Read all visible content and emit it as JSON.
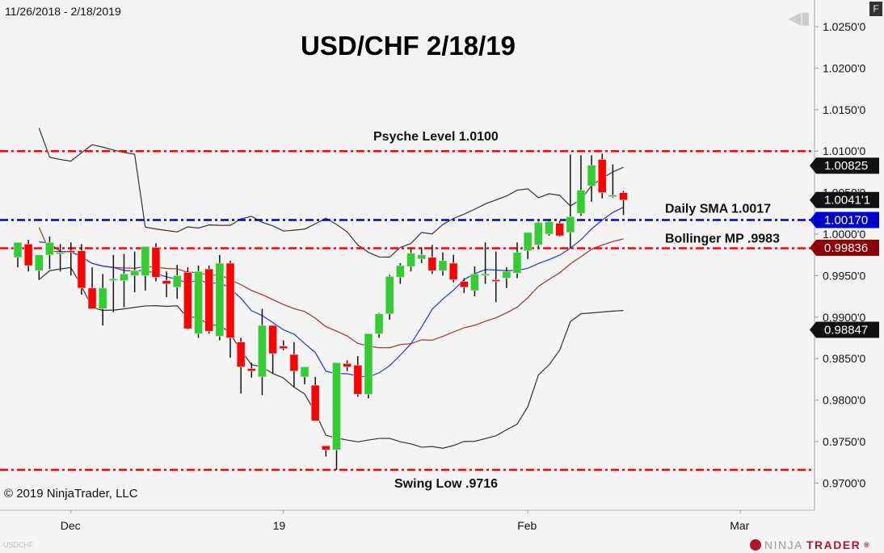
{
  "header": {
    "date_range": "11/26/2018 - 2/18/2019",
    "title": "USD/CHF 2/18/19",
    "f_button": "F",
    "nav_icon": "jump-to-start-icon"
  },
  "footer": {
    "copyright": "© 2019 NinjaTrader, LLC",
    "symbol": "USDCHF",
    "logo_ninja": "NINJA",
    "logo_trader": "TRADER",
    "logo_reg": "®"
  },
  "colors": {
    "background": "#f4f4f4",
    "up_candle": "#33cc33",
    "down_candle": "#ff0000",
    "level_red": "#ff0000",
    "level_blue": "#0000cc",
    "sma_blue": "#2233dd",
    "bb_mid": "#a03030",
    "bb_band": "#333333",
    "tag_black": "#111111",
    "tag_blue": "#0000cc",
    "tag_darkred": "#8b0000"
  },
  "chart_data": {
    "type": "candlestick",
    "title": "USD/CHF 2/18/19",
    "subtitle": "11/26/2018 - 2/18/2019",
    "xlabel": "",
    "ylabel": "",
    "ylim": [
      0.9675,
      1.0265
    ],
    "y_ticks": [
      "1.0250'0",
      "1.0200'0",
      "1.0150'0",
      "1.0100'0",
      "1.0050'0",
      "1.0000'0",
      "0.9950'0",
      "0.9900'0",
      "0.9850'0",
      "0.9800'0",
      "0.9750'0",
      "0.9700'0"
    ],
    "x_ticks": [
      {
        "label": "Dec",
        "bar": 5
      },
      {
        "label": "19",
        "bar": 25
      },
      {
        "label": "Feb",
        "bar": 48
      },
      {
        "label": "Mar",
        "bar": 68
      }
    ],
    "grid": false,
    "candles": [
      {
        "o": 0.9972,
        "h": 0.999,
        "l": 0.996,
        "c": 0.999
      },
      {
        "o": 0.9988,
        "h": 0.9993,
        "l": 0.9955,
        "c": 0.9962
      },
      {
        "o": 0.9956,
        "h": 0.9974,
        "l": 0.9945,
        "c": 0.9975
      },
      {
        "o": 0.9975,
        "h": 0.9997,
        "l": 0.9958,
        "c": 0.999
      },
      {
        "o": 0.9978,
        "h": 0.9988,
        "l": 0.9955,
        "c": 0.9978
      },
      {
        "o": 0.998,
        "h": 0.999,
        "l": 0.995,
        "c": 0.9978
      },
      {
        "o": 0.998,
        "h": 0.9988,
        "l": 0.9927,
        "c": 0.9935
      },
      {
        "o": 0.9935,
        "h": 0.996,
        "l": 0.9915,
        "c": 0.991
      },
      {
        "o": 0.991,
        "h": 0.9952,
        "l": 0.989,
        "c": 0.9935
      },
      {
        "o": 0.9946,
        "h": 0.9975,
        "l": 0.9906,
        "c": 0.9946
      },
      {
        "o": 0.9944,
        "h": 0.9976,
        "l": 0.9912,
        "c": 0.9952
      },
      {
        "o": 0.995,
        "h": 0.9979,
        "l": 0.993,
        "c": 0.9956
      },
      {
        "o": 0.995,
        "h": 0.9975,
        "l": 0.9932,
        "c": 0.9985
      },
      {
        "o": 0.9984,
        "h": 0.9989,
        "l": 0.9943,
        "c": 0.9948
      },
      {
        "o": 0.9944,
        "h": 0.9955,
        "l": 0.9924,
        "c": 0.994
      },
      {
        "o": 0.9936,
        "h": 0.9963,
        "l": 0.9922,
        "c": 0.995
      },
      {
        "o": 0.9954,
        "h": 0.996,
        "l": 0.9885,
        "c": 0.9886
      },
      {
        "o": 0.988,
        "h": 0.9962,
        "l": 0.9875,
        "c": 0.9955
      },
      {
        "o": 0.9958,
        "h": 0.9962,
        "l": 0.988,
        "c": 0.9883
      },
      {
        "o": 0.9877,
        "h": 0.9975,
        "l": 0.9872,
        "c": 0.9965
      },
      {
        "o": 0.9965,
        "h": 0.9968,
        "l": 0.9851,
        "c": 0.9875
      },
      {
        "o": 0.987,
        "h": 0.9875,
        "l": 0.9808,
        "c": 0.984
      },
      {
        "o": 0.9838,
        "h": 0.9845,
        "l": 0.9827,
        "c": 0.9835
      },
      {
        "o": 0.9828,
        "h": 0.991,
        "l": 0.9806,
        "c": 0.989
      },
      {
        "o": 0.989,
        "h": 0.989,
        "l": 0.9832,
        "c": 0.9856
      },
      {
        "o": 0.9865,
        "h": 0.9872,
        "l": 0.986,
        "c": 0.9862
      },
      {
        "o": 0.9855,
        "h": 0.987,
        "l": 0.9815,
        "c": 0.9835
      },
      {
        "o": 0.9828,
        "h": 0.984,
        "l": 0.9819,
        "c": 0.984
      },
      {
        "o": 0.9818,
        "h": 0.9828,
        "l": 0.9775,
        "c": 0.9775
      },
      {
        "o": 0.9745,
        "h": 0.9745,
        "l": 0.9732,
        "c": 0.974
      },
      {
        "o": 0.974,
        "h": 0.9845,
        "l": 0.9716,
        "c": 0.9845
      },
      {
        "o": 0.9844,
        "h": 0.9848,
        "l": 0.9835,
        "c": 0.984
      },
      {
        "o": 0.9842,
        "h": 0.9853,
        "l": 0.9804,
        "c": 0.9807
      },
      {
        "o": 0.9807,
        "h": 0.988,
        "l": 0.9802,
        "c": 0.988
      },
      {
        "o": 0.988,
        "h": 0.9905,
        "l": 0.9875,
        "c": 0.9904
      },
      {
        "o": 0.9904,
        "h": 0.9951,
        "l": 0.9897,
        "c": 0.9949
      },
      {
        "o": 0.9948,
        "h": 0.9965,
        "l": 0.994,
        "c": 0.9962
      },
      {
        "o": 0.9961,
        "h": 0.9983,
        "l": 0.9955,
        "c": 0.9977
      },
      {
        "o": 0.997,
        "h": 0.9984,
        "l": 0.9965,
        "c": 0.9975
      },
      {
        "o": 0.9972,
        "h": 0.9987,
        "l": 0.9952,
        "c": 0.9956
      },
      {
        "o": 0.9956,
        "h": 0.9978,
        "l": 0.995,
        "c": 0.9968
      },
      {
        "o": 0.9965,
        "h": 0.9975,
        "l": 0.9942,
        "c": 0.9945
      },
      {
        "o": 0.9943,
        "h": 0.9947,
        "l": 0.9929,
        "c": 0.9936
      },
      {
        "o": 0.9932,
        "h": 0.9961,
        "l": 0.9925,
        "c": 0.9952
      },
      {
        "o": 0.9952,
        "h": 0.999,
        "l": 0.994,
        "c": 0.9952
      },
      {
        "o": 0.9945,
        "h": 0.9979,
        "l": 0.9918,
        "c": 0.9944
      },
      {
        "o": 0.9947,
        "h": 0.996,
        "l": 0.9935,
        "c": 0.9955
      },
      {
        "o": 0.9953,
        "h": 0.999,
        "l": 0.9947,
        "c": 0.9978
      },
      {
        "o": 0.998,
        "h": 0.9997,
        "l": 0.997,
        "c": 1.0002
      },
      {
        "o": 0.9987,
        "h": 1.0015,
        "l": 0.9984,
        "c": 1.0014
      },
      {
        "o": 1.0,
        "h": 1.0017,
        "l": 0.9998,
        "c": 1.0015
      },
      {
        "o": 1.0013,
        "h": 1.0016,
        "l": 0.9997,
        "c": 0.9998
      },
      {
        "o": 1.0002,
        "h": 1.0096,
        "l": 0.9983,
        "c": 1.0021
      },
      {
        "o": 1.0025,
        "h": 1.0095,
        "l": 1.0022,
        "c": 1.0053
      },
      {
        "o": 1.0058,
        "h": 1.0095,
        "l": 1.0039,
        "c": 1.0083
      },
      {
        "o": 1.009,
        "h": 1.0097,
        "l": 1.0043,
        "c": 1.005
      },
      {
        "o": 1.0046,
        "h": 1.0084,
        "l": 1.0044,
        "c": 1.0047
      },
      {
        "o": 1.005,
        "h": 1.0052,
        "l": 1.0023,
        "c": 1.0041
      }
    ],
    "series": [
      {
        "name": "Bollinger Upper",
        "color": "#333333"
      },
      {
        "name": "Bollinger Middle (MP)",
        "color": "#a03030"
      },
      {
        "name": "Bollinger Lower",
        "color": "#333333"
      },
      {
        "name": "Daily SMA",
        "color": "#2233dd"
      }
    ],
    "horizontal_levels": [
      {
        "label": "Psyche Level 1.0100",
        "value": 1.01,
        "color": "#ff0000"
      },
      {
        "label": "Daily SMA  1.0017",
        "value": 1.0017,
        "color": "#0000cc"
      },
      {
        "label": "Bollinger MP .9983",
        "value": 0.9983,
        "color": "#ff0000"
      },
      {
        "label": "Swing Low .9716",
        "value": 0.9716,
        "color": "#ff0000"
      }
    ],
    "price_tags": [
      {
        "label": "1.00825",
        "value": 1.00825,
        "color": "#111111"
      },
      {
        "label": "1.0041'1",
        "value": 1.00411,
        "color": "#111111"
      },
      {
        "label": "1.00170",
        "value": 1.0017,
        "color": "#0000cc"
      },
      {
        "label": "0.99836",
        "value": 0.99836,
        "color": "#8b0000"
      },
      {
        "label": "0.98847",
        "value": 0.98847,
        "color": "#111111"
      }
    ],
    "annotations": [
      {
        "text": "Psyche Level 1.0100"
      },
      {
        "text": "Daily SMA  1.0017"
      },
      {
        "text": "Bollinger MP .9983"
      },
      {
        "text": "Swing Low .9716"
      }
    ]
  }
}
